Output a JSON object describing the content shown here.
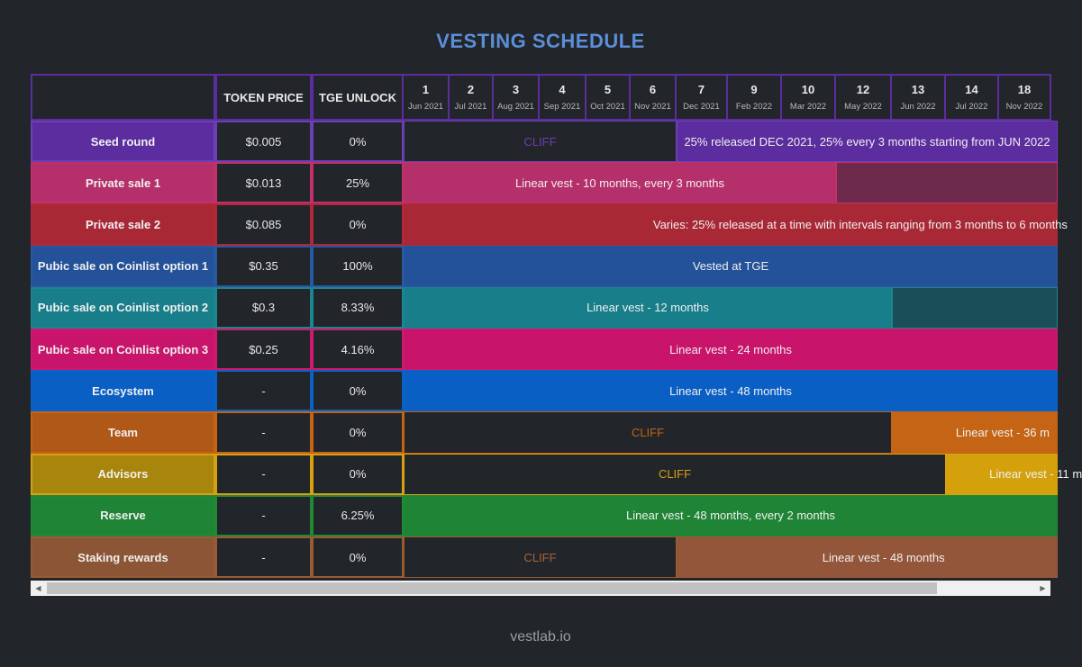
{
  "title": "VESTING SCHEDULE",
  "footer": "vestlab.io",
  "headers": {
    "token_price": "TOKEN PRICE",
    "tge_unlock": "TGE UNLOCK"
  },
  "months": [
    {
      "num": "1",
      "date": "Jun 2021"
    },
    {
      "num": "2",
      "date": "Jul 2021"
    },
    {
      "num": "3",
      "date": "Aug 2021"
    },
    {
      "num": "4",
      "date": "Sep 2021"
    },
    {
      "num": "5",
      "date": "Oct 2021"
    },
    {
      "num": "6",
      "date": "Nov 2021"
    },
    {
      "num": "7",
      "date": "Dec 2021"
    },
    {
      "num": "9",
      "date": "Feb 2022"
    },
    {
      "num": "10",
      "date": "Mar 2022"
    },
    {
      "num": "12",
      "date": "May 2022"
    },
    {
      "num": "13",
      "date": "Jun 2022"
    },
    {
      "num": "14",
      "date": "Jul 2022"
    },
    {
      "num": "18",
      "date": "Nov 2022"
    }
  ],
  "rows": [
    {
      "name": "Seed round",
      "price": "$0.005",
      "tge": "0%",
      "border": "#6c3fb5",
      "color": "#5b2d9e",
      "segments": [
        {
          "label": "CLIFF",
          "start_month": "1",
          "end_month": "6",
          "bg": "#222529",
          "fg": "#6c3fb5"
        },
        {
          "label": "25% released DEC 2021, 25% every 3 months starting from JUN 2022",
          "start_month": "7",
          "end_month": "18",
          "bg": "#5b2d9e",
          "fg": "#f0f0f0"
        }
      ]
    },
    {
      "name": "Private sale 1",
      "price": "$0.013",
      "tge": "25%",
      "border": "#c0306a",
      "color": "#b5306a",
      "segments": [
        {
          "label": "Linear vest - 10 months, every 3 months",
          "start_month": "1",
          "end_month": "10",
          "bg": "#b5306a",
          "fg": "#f0f0f0"
        },
        {
          "label": "",
          "start_month": "12",
          "end_month": "18",
          "bg": "#6e2a4c",
          "fg": "#f0f0f0"
        }
      ]
    },
    {
      "name": "Private sale 2",
      "price": "$0.085",
      "tge": "0%",
      "border": "#b0283a",
      "color": "#a82836",
      "segments": [
        {
          "label": "Varies: 25% released at a time with intervals ranging from 3 months to 6 months",
          "start_month": "1",
          "end_month": "18",
          "bg": "#a82836",
          "fg": "#f0f0f0",
          "align": "right"
        }
      ]
    },
    {
      "name": "Pubic sale on Coinlist option 1",
      "price": "$0.35",
      "tge": "100%",
      "border": "#2858a0",
      "color": "#23529a",
      "segments": [
        {
          "label": "Vested at TGE",
          "start_month": "1",
          "end_month": "18",
          "bg": "#23529a",
          "fg": "#f0f0f0"
        }
      ]
    },
    {
      "name": "Pubic sale on Coinlist option 2",
      "price": "$0.3",
      "tge": "8.33%",
      "border": "#1b8590",
      "color": "#177e8a",
      "segments": [
        {
          "label": "Linear vest - 12 months",
          "start_month": "1",
          "end_month": "12",
          "bg": "#177e8a",
          "fg": "#f0f0f0"
        },
        {
          "label": "",
          "start_month": "13",
          "end_month": "18",
          "bg": "#1a4f5a",
          "fg": "#f0f0f0"
        }
      ]
    },
    {
      "name": "Pubic sale on Coinlist option 3",
      "price": "$0.25",
      "tge": "4.16%",
      "border": "#d01870",
      "color": "#c8146a",
      "segments": [
        {
          "label": "Linear vest - 24 months",
          "start_month": "1",
          "end_month": "18",
          "bg": "#c8146a",
          "fg": "#f0f0f0"
        }
      ]
    },
    {
      "name": "Ecosystem",
      "price": "-",
      "tge": "0%",
      "border": "#0a62c8",
      "color": "#0a5fc4",
      "segments": [
        {
          "label": "Linear vest - 48 months",
          "start_month": "1",
          "end_month": "18",
          "bg": "#0a5fc4",
          "fg": "#f0f0f0"
        }
      ]
    },
    {
      "name": "Team",
      "price": "-",
      "tge": "0%",
      "border": "#c46414",
      "color": "#b05818",
      "segments": [
        {
          "label": "CLIFF",
          "start_month": "1",
          "end_month": "12",
          "bg": "#222529",
          "fg": "#c46414"
        },
        {
          "label": "Linear vest - 36 m",
          "start_month": "13",
          "end_month": "18",
          "bg": "#c46414",
          "fg": "#f0f0f0",
          "align": "right"
        }
      ]
    },
    {
      "name": "Advisors",
      "price": "-",
      "tge": "0%",
      "border": "#d8a010",
      "color": "#a8860e",
      "segments": [
        {
          "label": "CLIFF",
          "start_month": "1",
          "end_month": "13",
          "bg": "#222529",
          "fg": "#d8a010"
        },
        {
          "label": "Linear vest - 11 m",
          "start_month": "14",
          "end_month": "18",
          "bg": "#d4a00c",
          "fg": "#f0f0f0",
          "align": "right"
        }
      ]
    },
    {
      "name": "Reserve",
      "price": "-",
      "tge": "6.25%",
      "border": "#218836",
      "color": "#1f8435",
      "segments": [
        {
          "label": "Linear vest - 48 months, every 2 months",
          "start_month": "1",
          "end_month": "18",
          "bg": "#1f8435",
          "fg": "#f0f0f0"
        }
      ]
    },
    {
      "name": "Staking rewards",
      "price": "-",
      "tge": "0%",
      "border": "#9a5a34",
      "color": "#8c5535",
      "segments": [
        {
          "label": "CLIFF",
          "start_month": "1",
          "end_month": "6",
          "bg": "#222529",
          "fg": "#a8643a"
        },
        {
          "label": "Linear vest - 48 months",
          "start_month": "7",
          "end_month": "18",
          "bg": "#93563a",
          "fg": "#f0f0f0",
          "align": "right"
        }
      ]
    }
  ]
}
